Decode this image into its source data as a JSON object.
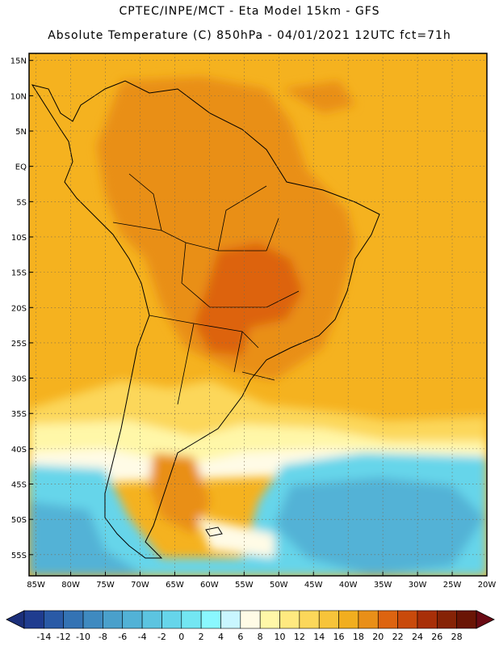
{
  "title_line1": "CPTEC/INPE/MCT -   Eta Model 15km - GFS",
  "title_line2": "Absolute Temperature (C) 850hPa - 04/01/2021 12UTC fct=71h",
  "lat_labels": [
    "15N",
    "10N",
    "5N",
    "EQ",
    "5S",
    "10S",
    "15S",
    "20S",
    "25S",
    "30S",
    "35S",
    "40S",
    "45S",
    "50S",
    "55S"
  ],
  "lat_values": [
    15,
    10,
    5,
    0,
    -5,
    -10,
    -15,
    -20,
    -25,
    -30,
    -35,
    -40,
    -45,
    -50,
    -55
  ],
  "lon_labels": [
    "85W",
    "80W",
    "75W",
    "70W",
    "65W",
    "60W",
    "55W",
    "50W",
    "45W",
    "40W",
    "35W",
    "30W",
    "25W",
    "20W"
  ],
  "lon_values": [
    -85,
    -80,
    -75,
    -70,
    -65,
    -60,
    -55,
    -50,
    -45,
    -40,
    -35,
    -30,
    -25,
    -20
  ],
  "map_extent": {
    "lon_min": -86,
    "lon_max": -20,
    "lat_min": -58,
    "lat_max": 16
  },
  "colorbar": {
    "labels": [
      "-14",
      "-12",
      "-10",
      "-8",
      "-6",
      "-4",
      "-2",
      "0",
      "2",
      "4",
      "6",
      "8",
      "10",
      "12",
      "14",
      "16",
      "18",
      "20",
      "22",
      "24",
      "26",
      "28"
    ],
    "colors": [
      "#1f3c8f",
      "#2a5aa6",
      "#3473b4",
      "#3f8ac0",
      "#4aa0cb",
      "#52b2d6",
      "#5cc4e0",
      "#66d5ea",
      "#73e6f2",
      "#8af8ff",
      "#c9f6ff",
      "#fffbe6",
      "#fff7a8",
      "#ffe980",
      "#fcd75a",
      "#f7c43a",
      "#f1ae1f",
      "#e98f18",
      "#dd6410",
      "#c94a0b",
      "#a82f08",
      "#862306",
      "#6a1505"
    ],
    "low_color": "#1b2f7a",
    "high_color": "#6a0a14"
  },
  "colors": {
    "warm_base": "#f5b21f",
    "hot": "#e98f18",
    "very_hot": "#dd6410",
    "mild": "#fcd75a",
    "cool": "#fff7a8",
    "pale": "#fffbe6",
    "cold": "#66d5ea",
    "colder": "#52b2d6"
  }
}
